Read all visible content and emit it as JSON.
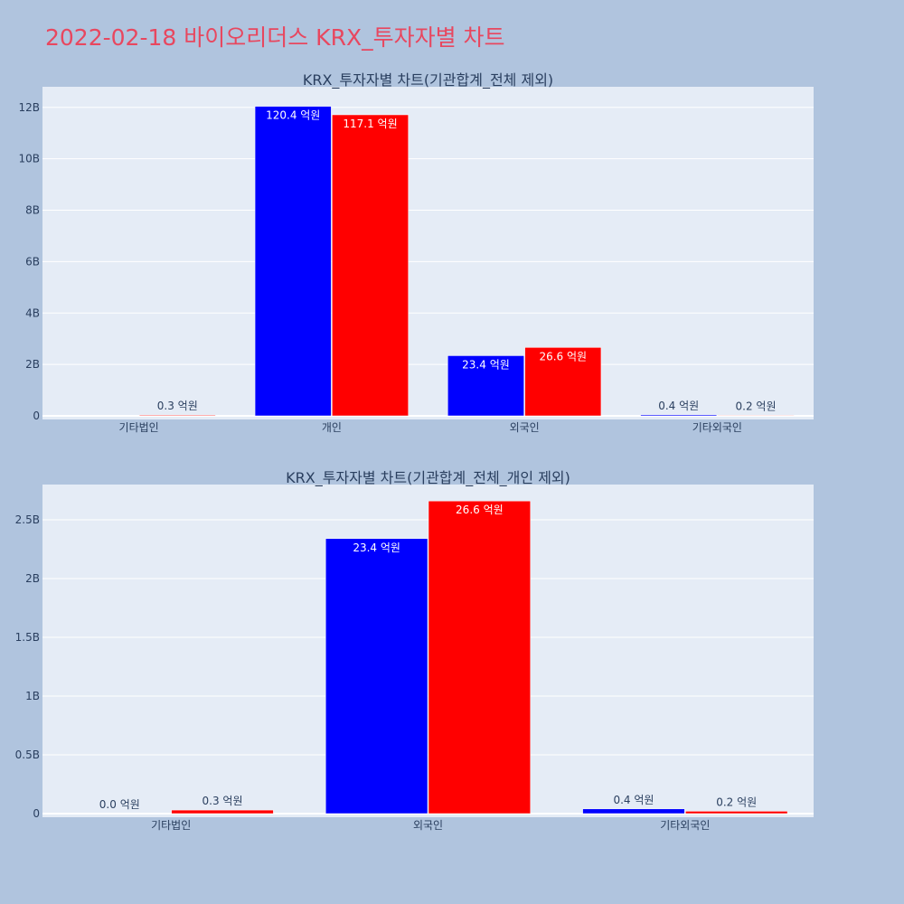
{
  "page": {
    "title": "2022-02-18 바이오리더스 KRX_투자자별 차트"
  },
  "colors": {
    "page_bg": "#b0c4de",
    "plot_bg": "#e5ecf6",
    "title": "#e8475f",
    "series_buy": "#0000ff",
    "series_sell": "#ff0000",
    "text": "#2a3f5f"
  },
  "chart_data": [
    {
      "type": "bar",
      "title": "KRX_투자자별 차트(기관합계_전체 제외)",
      "categories": [
        "기타법인",
        "개인",
        "외국인",
        "기타외국인"
      ],
      "ylim": [
        0,
        12800000000
      ],
      "yticks": [
        0,
        2000000000,
        4000000000,
        6000000000,
        8000000000,
        10000000000,
        12000000000
      ],
      "ytick_labels": [
        "0",
        "2B",
        "4B",
        "6B",
        "8B",
        "10B",
        "12B"
      ],
      "grid": true,
      "series": [
        {
          "color": "#0000ff",
          "values": [
            0,
            12040000000,
            2340000000,
            40000000
          ],
          "labels": [
            "",
            "120.4 억원",
            "23.4 억원",
            "0.4 억원"
          ]
        },
        {
          "color": "#ff0000",
          "values": [
            30000000,
            11710000000,
            2660000000,
            20000000
          ],
          "labels": [
            "0.3 억원",
            "117.1 억원",
            "26.6 억원",
            "0.2 억원"
          ]
        }
      ]
    },
    {
      "type": "bar",
      "title": "KRX_투자자별 차트(기관합계_전체_개인 제외)",
      "categories": [
        "기타법인",
        "외국인",
        "기타외국인"
      ],
      "ylim": [
        0,
        2800000000
      ],
      "yticks": [
        0,
        500000000,
        1000000000,
        1500000000,
        2000000000,
        2500000000
      ],
      "ytick_labels": [
        "0",
        "0.5B",
        "1B",
        "1.5B",
        "2B",
        "2.5B"
      ],
      "grid": true,
      "series": [
        {
          "color": "#0000ff",
          "values": [
            0,
            2340000000,
            40000000
          ],
          "labels": [
            "0.0 억원",
            "23.4 억원",
            "0.4 억원"
          ]
        },
        {
          "color": "#ff0000",
          "values": [
            30000000,
            2660000000,
            20000000
          ],
          "labels": [
            "0.3 억원",
            "26.6 억원",
            "0.2 억원"
          ]
        }
      ]
    }
  ]
}
